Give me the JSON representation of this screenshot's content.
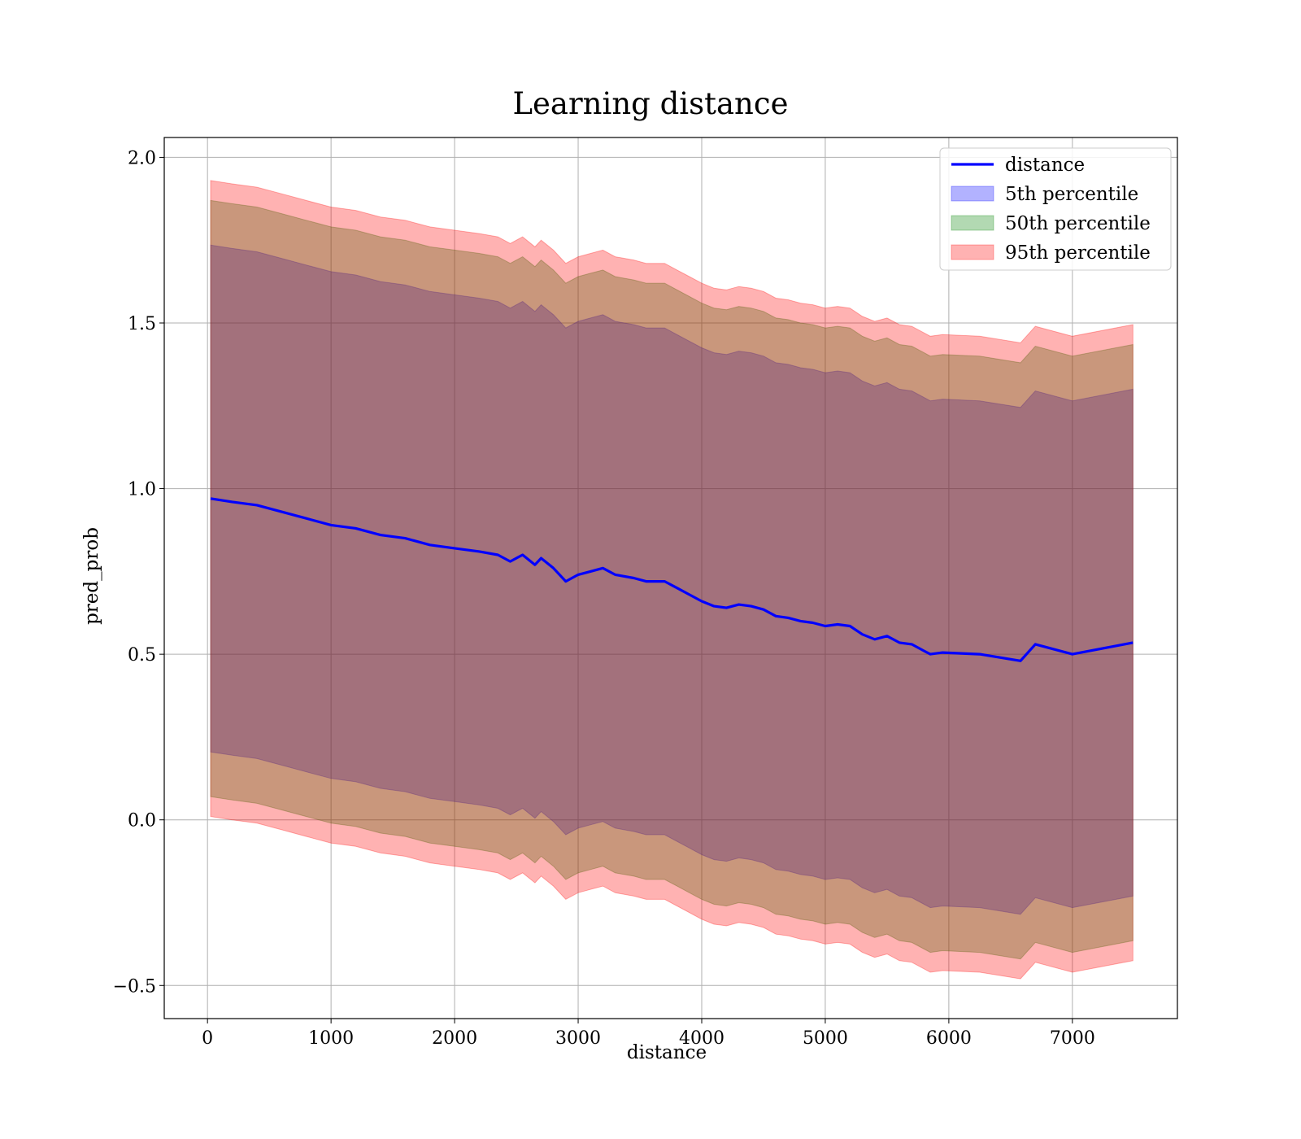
{
  "chart_data": {
    "type": "area",
    "title": "Learning distance",
    "xlabel": "distance",
    "ylabel": "pred_prob",
    "xlim": [
      -350,
      7850
    ],
    "ylim": [
      -0.6,
      2.06
    ],
    "x_ticks": [
      0,
      1000,
      2000,
      3000,
      4000,
      5000,
      6000,
      7000
    ],
    "x_tick_labels": [
      "0",
      "1000",
      "2000",
      "3000",
      "4000",
      "5000",
      "6000",
      "7000"
    ],
    "y_ticks": [
      -0.5,
      0.0,
      0.5,
      1.0,
      1.5,
      2.0
    ],
    "y_tick_labels": [
      "−0.5",
      "0.0",
      "0.5",
      "1.0",
      "1.5",
      "2.0"
    ],
    "grid": true,
    "legend_position": "top-right",
    "x": [
      25,
      200,
      400,
      600,
      800,
      1000,
      1200,
      1400,
      1600,
      1800,
      2000,
      2200,
      2350,
      2450,
      2550,
      2650,
      2700,
      2800,
      2900,
      3000,
      3100,
      3200,
      3300,
      3450,
      3550,
      3700,
      3800,
      3900,
      4000,
      4100,
      4200,
      4300,
      4400,
      4500,
      4600,
      4700,
      4800,
      4900,
      5000,
      5100,
      5200,
      5300,
      5400,
      5500,
      5600,
      5700,
      5800,
      5850,
      5950,
      6250,
      6580,
      6700,
      7000,
      7490
    ],
    "series": [
      {
        "name": "distance",
        "kind": "line",
        "color": "#0000ff",
        "values": [
          0.97,
          0.96,
          0.95,
          0.93,
          0.91,
          0.89,
          0.88,
          0.86,
          0.85,
          0.83,
          0.82,
          0.81,
          0.8,
          0.78,
          0.8,
          0.77,
          0.79,
          0.76,
          0.72,
          0.74,
          0.75,
          0.76,
          0.74,
          0.73,
          0.72,
          0.72,
          0.7,
          0.68,
          0.66,
          0.645,
          0.64,
          0.65,
          0.645,
          0.635,
          0.615,
          0.61,
          0.6,
          0.595,
          0.585,
          0.59,
          0.585,
          0.56,
          0.545,
          0.555,
          0.535,
          0.53,
          0.51,
          0.5,
          0.505,
          0.5,
          0.48,
          0.53,
          0.5,
          0.535
        ]
      },
      {
        "name": "5th percentile",
        "kind": "band",
        "color": "#0000ff",
        "opacity": 0.3,
        "lower": [
          0.205,
          0.195,
          0.185,
          0.165,
          0.145,
          0.125,
          0.115,
          0.095,
          0.085,
          0.065,
          0.055,
          0.045,
          0.035,
          0.015,
          0.035,
          0.005,
          0.025,
          -0.005,
          -0.045,
          -0.025,
          -0.015,
          -0.005,
          -0.025,
          -0.035,
          -0.045,
          -0.045,
          -0.065,
          -0.085,
          -0.105,
          -0.12,
          -0.125,
          -0.115,
          -0.12,
          -0.13,
          -0.15,
          -0.155,
          -0.165,
          -0.17,
          -0.18,
          -0.175,
          -0.18,
          -0.205,
          -0.22,
          -0.21,
          -0.23,
          -0.235,
          -0.255,
          -0.265,
          -0.26,
          -0.265,
          -0.285,
          -0.235,
          -0.265,
          -0.23
        ],
        "upper": [
          1.735,
          1.725,
          1.715,
          1.695,
          1.675,
          1.655,
          1.645,
          1.625,
          1.615,
          1.595,
          1.585,
          1.575,
          1.565,
          1.545,
          1.565,
          1.535,
          1.555,
          1.525,
          1.485,
          1.505,
          1.515,
          1.525,
          1.505,
          1.495,
          1.485,
          1.485,
          1.465,
          1.445,
          1.425,
          1.41,
          1.405,
          1.415,
          1.41,
          1.4,
          1.38,
          1.375,
          1.365,
          1.36,
          1.35,
          1.355,
          1.35,
          1.325,
          1.31,
          1.32,
          1.3,
          1.295,
          1.275,
          1.265,
          1.27,
          1.265,
          1.245,
          1.295,
          1.265,
          1.3
        ]
      },
      {
        "name": "50th percentile",
        "kind": "band",
        "color": "#008000",
        "opacity": 0.3,
        "lower": [
          0.07,
          0.06,
          0.05,
          0.03,
          0.01,
          -0.01,
          -0.02,
          -0.04,
          -0.05,
          -0.07,
          -0.08,
          -0.09,
          -0.1,
          -0.12,
          -0.1,
          -0.13,
          -0.11,
          -0.14,
          -0.18,
          -0.16,
          -0.15,
          -0.14,
          -0.16,
          -0.17,
          -0.18,
          -0.18,
          -0.2,
          -0.22,
          -0.24,
          -0.255,
          -0.26,
          -0.25,
          -0.255,
          -0.265,
          -0.285,
          -0.29,
          -0.3,
          -0.305,
          -0.315,
          -0.31,
          -0.315,
          -0.34,
          -0.355,
          -0.345,
          -0.365,
          -0.37,
          -0.39,
          -0.4,
          -0.395,
          -0.4,
          -0.42,
          -0.37,
          -0.4,
          -0.365
        ],
        "upper": [
          1.87,
          1.86,
          1.85,
          1.83,
          1.81,
          1.79,
          1.78,
          1.76,
          1.75,
          1.73,
          1.72,
          1.71,
          1.7,
          1.68,
          1.7,
          1.67,
          1.69,
          1.66,
          1.62,
          1.64,
          1.65,
          1.66,
          1.64,
          1.63,
          1.62,
          1.62,
          1.6,
          1.58,
          1.56,
          1.545,
          1.54,
          1.55,
          1.545,
          1.535,
          1.515,
          1.51,
          1.5,
          1.495,
          1.485,
          1.49,
          1.485,
          1.46,
          1.445,
          1.455,
          1.435,
          1.43,
          1.41,
          1.4,
          1.405,
          1.4,
          1.38,
          1.43,
          1.4,
          1.435
        ]
      },
      {
        "name": "95th percentile",
        "kind": "band",
        "color": "#ff0000",
        "opacity": 0.3,
        "lower": [
          0.01,
          0.0,
          -0.01,
          -0.03,
          -0.05,
          -0.07,
          -0.08,
          -0.1,
          -0.11,
          -0.13,
          -0.14,
          -0.15,
          -0.16,
          -0.18,
          -0.16,
          -0.19,
          -0.17,
          -0.2,
          -0.24,
          -0.22,
          -0.21,
          -0.2,
          -0.22,
          -0.23,
          -0.24,
          -0.24,
          -0.26,
          -0.28,
          -0.3,
          -0.315,
          -0.32,
          -0.31,
          -0.315,
          -0.325,
          -0.345,
          -0.35,
          -0.36,
          -0.365,
          -0.375,
          -0.37,
          -0.375,
          -0.4,
          -0.415,
          -0.405,
          -0.425,
          -0.43,
          -0.45,
          -0.46,
          -0.455,
          -0.46,
          -0.48,
          -0.43,
          -0.46,
          -0.425
        ],
        "upper": [
          1.93,
          1.92,
          1.91,
          1.89,
          1.87,
          1.85,
          1.84,
          1.82,
          1.81,
          1.79,
          1.78,
          1.77,
          1.76,
          1.74,
          1.76,
          1.73,
          1.75,
          1.72,
          1.68,
          1.7,
          1.71,
          1.72,
          1.7,
          1.69,
          1.68,
          1.68,
          1.66,
          1.64,
          1.62,
          1.605,
          1.6,
          1.61,
          1.605,
          1.595,
          1.575,
          1.57,
          1.56,
          1.555,
          1.545,
          1.55,
          1.545,
          1.52,
          1.505,
          1.515,
          1.495,
          1.49,
          1.47,
          1.46,
          1.465,
          1.46,
          1.44,
          1.49,
          1.46,
          1.495
        ]
      }
    ]
  }
}
